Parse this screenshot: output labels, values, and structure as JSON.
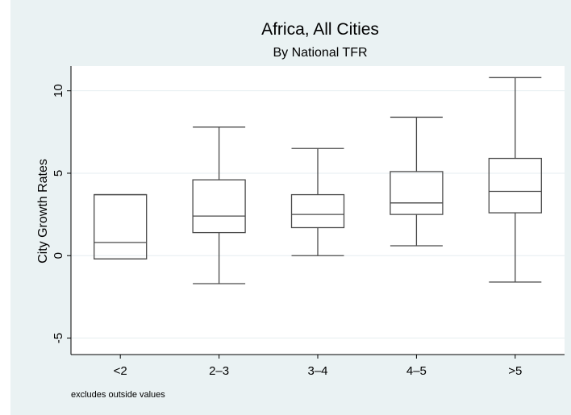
{
  "chart_data": {
    "type": "box",
    "title": "Africa, All Cities",
    "subtitle": "By National TFR",
    "xlabel": "",
    "ylabel": "City Growth Rates",
    "ylim": [
      -6,
      11.5
    ],
    "yticks": [
      -5,
      0,
      5,
      10
    ],
    "ytick_labels": [
      "-5",
      "0",
      "5",
      "10"
    ],
    "grid": true,
    "note": "excludes outside values",
    "categories": [
      "<2",
      "2–3",
      "3–4",
      "4–5",
      ">5"
    ],
    "boxes": [
      {
        "category": "<2",
        "whisker_low": -0.2,
        "q1": -0.2,
        "median": 0.8,
        "q3": 3.7,
        "whisker_high": 3.7
      },
      {
        "category": "2–3",
        "whisker_low": -1.7,
        "q1": 1.4,
        "median": 2.4,
        "q3": 4.6,
        "whisker_high": 7.8
      },
      {
        "category": "3–4",
        "whisker_low": 0.0,
        "q1": 1.7,
        "median": 2.5,
        "q3": 3.7,
        "whisker_high": 6.5
      },
      {
        "category": "4–5",
        "whisker_low": 0.6,
        "q1": 2.5,
        "median": 3.2,
        "q3": 5.1,
        "whisker_high": 8.4
      },
      {
        "category": ">5",
        "whisker_low": -1.6,
        "q1": 2.6,
        "median": 3.9,
        "q3": 5.9,
        "whisker_high": 10.8
      }
    ],
    "colors": {
      "figure_bg": "#eaf2f3",
      "plot_bg": "#ffffff",
      "box_stroke": "#4a4a4a",
      "grid": "#e6eef0",
      "axis": "#000000"
    }
  }
}
